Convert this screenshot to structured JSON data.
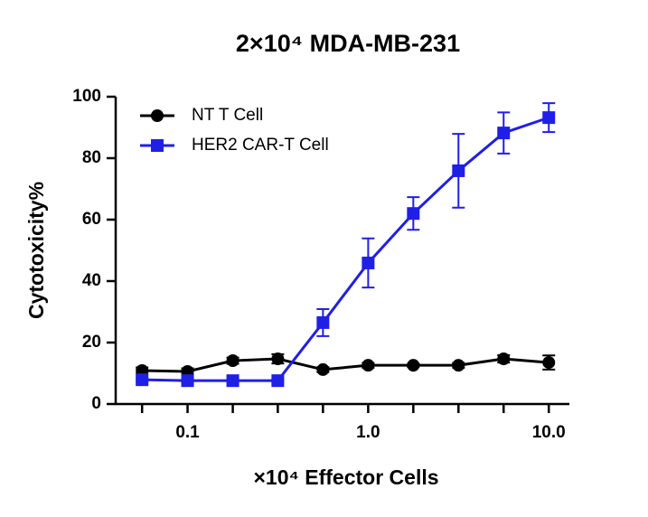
{
  "chart_data": {
    "type": "line",
    "title": "2×10⁴ MDA-MB-231",
    "x_label": "×10⁴ Effector Cells",
    "y_label": "Cytotoxicity%",
    "x": [
      0.056,
      0.1,
      0.178,
      0.316,
      0.562,
      1,
      1.778,
      3.162,
      5.623,
      10
    ],
    "xscale": "log",
    "xlim": [
      0.04,
      13
    ],
    "xticks": [
      {
        "value": 0.1,
        "label": "0.1"
      },
      {
        "value": 1,
        "label": "1.0"
      },
      {
        "value": 10,
        "label": "10.0"
      }
    ],
    "ylim": [
      0,
      100
    ],
    "yticks": [
      0,
      20,
      40,
      60,
      80,
      100
    ],
    "legend": "upper left",
    "series": [
      {
        "name": "NT T Cell",
        "color": "#000000",
        "marker": "circle",
        "values": [
          10.9,
          10.6,
          14.1,
          14.7,
          11.2,
          12.6,
          12.6,
          12.6,
          14.7,
          13.5
        ],
        "errors": [
          1,
          1,
          1,
          1.5,
          0.8,
          0.8,
          0.5,
          0.8,
          1.2,
          2.3
        ]
      },
      {
        "name": "HER2 CAR-T Cell",
        "color": "#1f1fe6",
        "marker": "square",
        "values": [
          7.9,
          7.6,
          7.6,
          7.6,
          26.5,
          45.9,
          62,
          75.9,
          88.2,
          93.2
        ],
        "errors": [
          0.5,
          0.5,
          0.5,
          0.5,
          4.4,
          8,
          5.3,
          12,
          6.7,
          4.7
        ]
      }
    ]
  }
}
